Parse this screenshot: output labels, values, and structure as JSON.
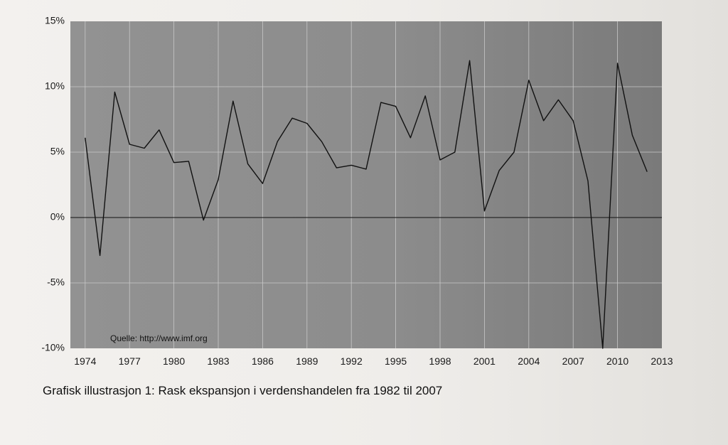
{
  "chart_data": {
    "type": "line",
    "x": [
      1974,
      1975,
      1976,
      1977,
      1978,
      1979,
      1980,
      1981,
      1982,
      1983,
      1984,
      1985,
      1986,
      1987,
      1988,
      1989,
      1990,
      1991,
      1992,
      1993,
      1994,
      1995,
      1996,
      1997,
      1998,
      1999,
      2000,
      2001,
      2002,
      2003,
      2004,
      2005,
      2006,
      2007,
      2008,
      2009,
      2010,
      2011,
      2012
    ],
    "series": [
      {
        "values": [
          6.1,
          -2.9,
          9.6,
          5.6,
          5.3,
          6.7,
          4.2,
          4.3,
          -0.2,
          2.9,
          8.9,
          4.1,
          2.6,
          5.8,
          7.6,
          7.2,
          5.8,
          3.8,
          4.0,
          3.7,
          8.8,
          8.5,
          6.1,
          9.3,
          4.4,
          5.0,
          12.0,
          0.5,
          3.6,
          5.0,
          10.5,
          7.4,
          9.0,
          7.4,
          2.8,
          -10.0,
          11.8,
          6.3,
          3.5
        ]
      }
    ],
    "xticks": [
      "1974",
      "1977",
      "1980",
      "1983",
      "1986",
      "1989",
      "1992",
      "1995",
      "1998",
      "2001",
      "2004",
      "2007",
      "2010",
      "2013"
    ],
    "yticks": [
      "15%",
      "10%",
      "5%",
      "0%",
      "-5%",
      "-10%"
    ],
    "ylim": [
      -10,
      15
    ],
    "xlim": [
      1973,
      2013
    ],
    "grid": true,
    "annotation": "Quelle: http://www.imf.org"
  },
  "caption": "Grafisk illustrasjon 1: Rask ekspansjon i verdenshandelen fra 1982 til 2007",
  "colors": {
    "plot_background": "#8a8a8a",
    "line": "#111111",
    "grid": "#c8c8c8"
  }
}
